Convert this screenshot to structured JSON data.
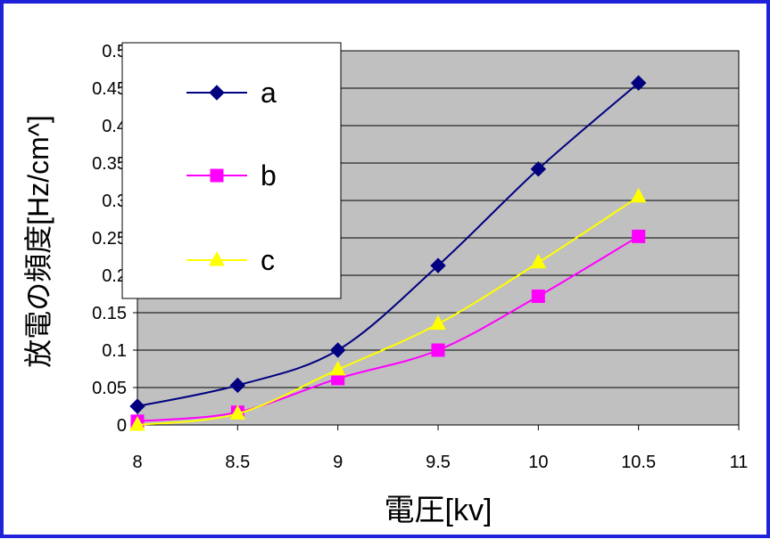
{
  "chart_data": {
    "type": "line",
    "xlabel": "電圧[kv]",
    "ylabel": "放電の頻度[Hz/cm^]",
    "xlim": [
      8,
      11
    ],
    "ylim": [
      0,
      0.5
    ],
    "xticks": [
      "8",
      "8.5",
      "9",
      "9.5",
      "10",
      "10.5",
      "11"
    ],
    "yticks": [
      "0",
      "0.05",
      "0.1",
      "0.15",
      "0.2",
      "0.25",
      "0.3",
      "0.35",
      "0.4",
      "0.45",
      "0.5"
    ],
    "grid": "horizontal",
    "legend_position": "top-left",
    "plot_background": "#c0c0c0",
    "series": [
      {
        "name": "a",
        "color": "#000080",
        "marker": "diamond",
        "x": [
          8,
          8.5,
          9,
          9.5,
          10,
          10.5
        ],
        "y": [
          0.025,
          0.053,
          0.1,
          0.213,
          0.342,
          0.457
        ]
      },
      {
        "name": "b",
        "color": "#ff00ff",
        "marker": "square",
        "x": [
          8,
          8.5,
          9,
          9.5,
          10,
          10.5
        ],
        "y": [
          0.005,
          0.017,
          0.062,
          0.1,
          0.172,
          0.252
        ]
      },
      {
        "name": "c",
        "color": "#ffff00",
        "marker": "triangle",
        "x": [
          8,
          8.5,
          9,
          9.5,
          10,
          10.5
        ],
        "y": [
          0,
          0.015,
          0.074,
          0.135,
          0.217,
          0.305
        ]
      }
    ]
  }
}
